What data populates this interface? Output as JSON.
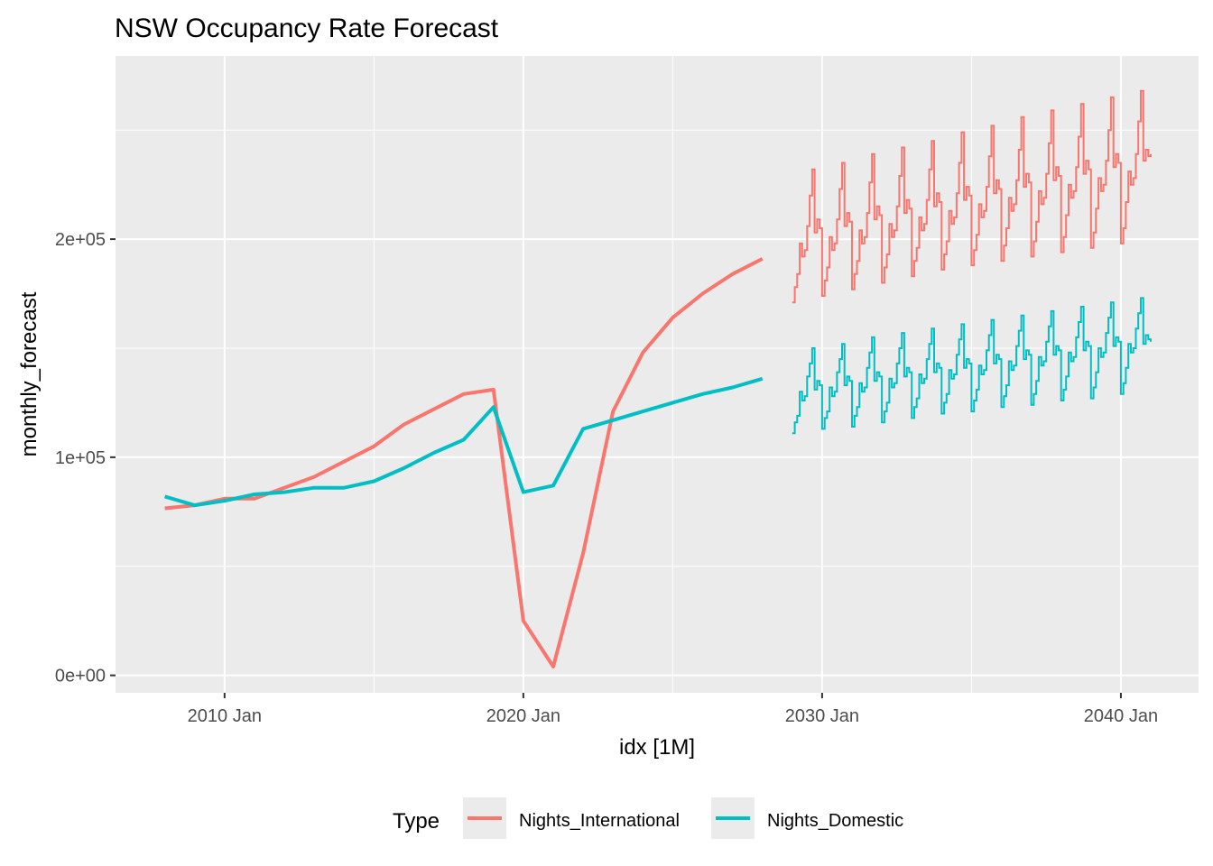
{
  "chart_data": {
    "type": "line",
    "title": "NSW Occupancy Rate Forecast",
    "xlabel": "idx [1M]",
    "ylabel": "monthly_forecast",
    "x_ticks": [
      {
        "value": 2010.0,
        "label": "2010 Jan"
      },
      {
        "value": 2020.0,
        "label": "2020 Jan"
      },
      {
        "value": 2030.0,
        "label": "2030 Jan"
      },
      {
        "value": 2040.0,
        "label": "2040 Jan"
      }
    ],
    "y_ticks": [
      {
        "value": 0,
        "label": "0e+00"
      },
      {
        "value": 100000,
        "label": "1e+05"
      },
      {
        "value": 200000,
        "label": "2e+05"
      }
    ],
    "xlim": [
      2006.35,
      2042.6
    ],
    "ylim": [
      -8000,
      284000
    ],
    "grid": true,
    "legend": {
      "title": "Type",
      "position": "bottom",
      "entries": [
        {
          "name": "Nights_International",
          "color": "#F8766D"
        },
        {
          "name": "Nights_Domestic",
          "color": "#00BFC4"
        }
      ]
    },
    "series": [
      {
        "name": "Nights_International",
        "color": "#F8766D",
        "segment": "annual",
        "x": [
          2008,
          2009,
          2010,
          2011,
          2012,
          2013,
          2014,
          2015,
          2016,
          2017,
          2018,
          2019,
          2020,
          2021,
          2022,
          2023,
          2024,
          2025,
          2026,
          2027,
          2028
        ],
        "y": [
          76600,
          78000,
          81000,
          81000,
          86000,
          91000,
          98000,
          105000,
          115000,
          122000,
          129000,
          131000,
          25000,
          4000,
          56000,
          121000,
          148000,
          164000,
          175000,
          184000,
          191000
        ]
      },
      {
        "name": "Nights_Domestic",
        "color": "#00BFC4",
        "segment": "annual",
        "x": [
          2008,
          2009,
          2010,
          2011,
          2012,
          2013,
          2014,
          2015,
          2016,
          2017,
          2018,
          2019,
          2020,
          2021,
          2022,
          2023,
          2024,
          2025,
          2026,
          2027,
          2028
        ],
        "y": [
          82000,
          78000,
          80000,
          83000,
          84000,
          86000,
          86000,
          89000,
          95000,
          102000,
          108000,
          123000,
          84000,
          87000,
          113000,
          117000,
          121000,
          125000,
          129000,
          132000,
          136000
        ]
      },
      {
        "name": "Nights_International",
        "color": "#F8766D",
        "segment": "monthly_forecast",
        "start": "2029 Jan",
        "end": "2041 Jan",
        "y": [
          171000,
          178000,
          184000,
          198000,
          192000,
          195000,
          206000,
          220000,
          232000,
          203000,
          209000,
          205000,
          174000,
          181000,
          187000,
          201000,
          195000,
          198000,
          209000,
          223000,
          235000,
          206000,
          212000,
          208000,
          177000,
          184000,
          190000,
          204000,
          198000,
          201000,
          212000,
          226000,
          239000,
          209000,
          215000,
          211000,
          180000,
          187000,
          193000,
          207000,
          201000,
          204000,
          215000,
          229000,
          242000,
          212000,
          218000,
          214000,
          183000,
          190000,
          196000,
          210000,
          204000,
          207000,
          218000,
          232000,
          245000,
          215000,
          221000,
          217000,
          186000,
          193000,
          199000,
          213000,
          207000,
          210000,
          221000,
          235000,
          249000,
          218000,
          224000,
          220000,
          188000,
          195000,
          202000,
          216000,
          210000,
          213000,
          224000,
          238000,
          252000,
          221000,
          227000,
          223000,
          190000,
          197000,
          205000,
          219000,
          213000,
          216000,
          227000,
          241000,
          256000,
          224000,
          230000,
          226000,
          192000,
          199000,
          208000,
          222000,
          216000,
          219000,
          230000,
          244000,
          259000,
          227000,
          233000,
          229000,
          194000,
          201000,
          211000,
          225000,
          219000,
          222000,
          233000,
          247000,
          262000,
          230000,
          236000,
          232000,
          196000,
          203000,
          214000,
          228000,
          222000,
          225000,
          236000,
          250000,
          265000,
          233000,
          239000,
          235000,
          198000,
          205000,
          217000,
          231000,
          225000,
          228000,
          239000,
          254000,
          268000,
          236000,
          241000,
          238000,
          239000
        ]
      },
      {
        "name": "Nights_Domestic",
        "color": "#00BFC4",
        "segment": "monthly_forecast",
        "start": "2029 Jan",
        "end": "2041 Jan",
        "y": [
          111000,
          116000,
          119000,
          130000,
          126000,
          128000,
          137000,
          143000,
          150000,
          131000,
          135000,
          133000,
          113000,
          118000,
          121000,
          132000,
          128000,
          130000,
          139000,
          145000,
          152000,
          133000,
          137000,
          135000,
          114000,
          119000,
          123000,
          134000,
          130000,
          132000,
          141000,
          148000,
          155000,
          135000,
          139000,
          137000,
          116000,
          121000,
          125000,
          136000,
          132000,
          134000,
          143000,
          150000,
          157000,
          137000,
          141000,
          139000,
          118000,
          123000,
          127000,
          138000,
          134000,
          136000,
          145000,
          152000,
          159000,
          139000,
          143000,
          141000,
          120000,
          125000,
          129000,
          140000,
          136000,
          138000,
          147000,
          154000,
          161000,
          141000,
          145000,
          143000,
          121000,
          126000,
          131000,
          142000,
          138000,
          140000,
          149000,
          156000,
          163000,
          143000,
          147000,
          145000,
          123000,
          128000,
          133000,
          144000,
          140000,
          142000,
          151000,
          158000,
          165000,
          145000,
          149000,
          147000,
          124000,
          129000,
          135000,
          146000,
          142000,
          144000,
          153000,
          160000,
          167000,
          147000,
          151000,
          149000,
          126000,
          131000,
          137000,
          148000,
          144000,
          146000,
          155000,
          162000,
          169000,
          149000,
          153000,
          151000,
          127000,
          132000,
          139000,
          150000,
          146000,
          148000,
          157000,
          164000,
          171000,
          151000,
          155000,
          153000,
          129000,
          134000,
          141000,
          152000,
          148000,
          150000,
          159000,
          166000,
          173000,
          152000,
          156000,
          154000,
          153000
        ]
      }
    ]
  }
}
